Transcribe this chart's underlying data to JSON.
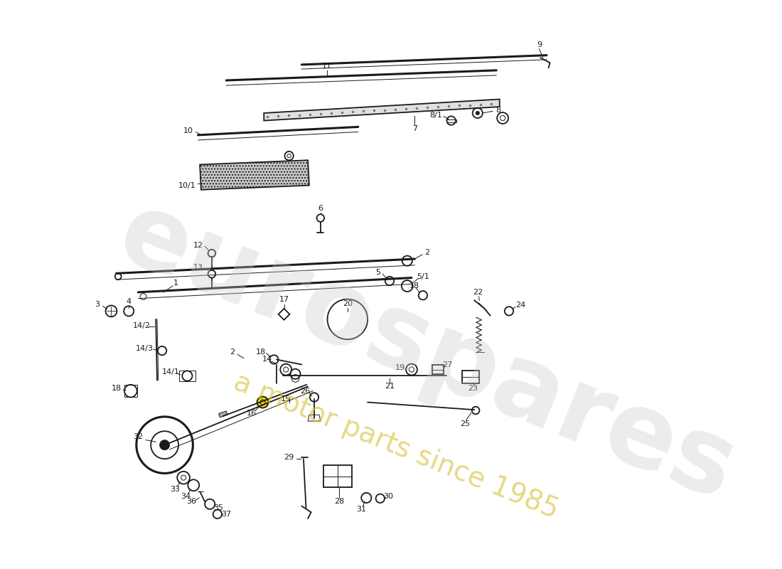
{
  "bg_color": "#ffffff",
  "lc": "#1a1a1a",
  "wm1": "eurospares",
  "wm2": "a motor parts since 1985",
  "wm1_color": "#c8c8c8",
  "wm2_color": "#d4c030",
  "figsize": [
    11.0,
    8.0
  ],
  "dpi": 100,
  "lw_thick": 2.2,
  "lw_med": 1.3,
  "lw_thin": 0.7,
  "label_fs": 8.0
}
